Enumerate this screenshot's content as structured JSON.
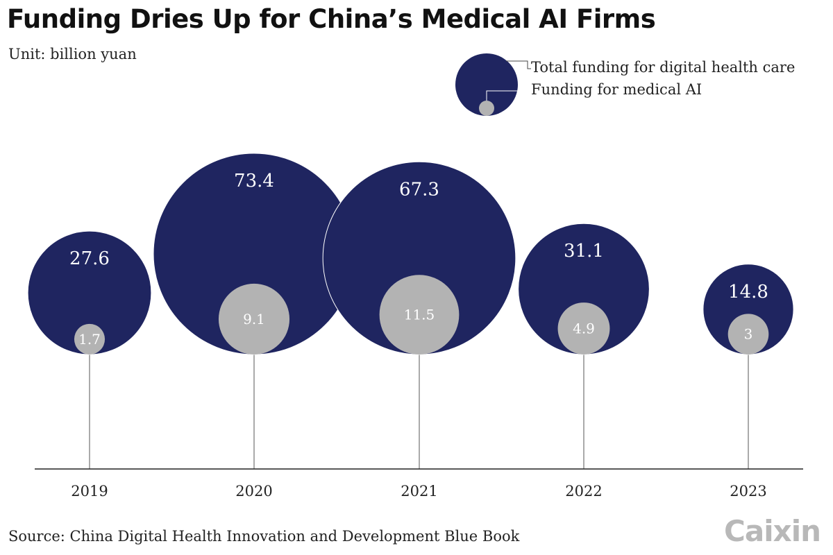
{
  "title": "Funding Dries Up for China’s Medical AI Firms",
  "subtitle": "Unit: billion yuan",
  "source": "Source: China Digital Health Innovation and Development Blue Book",
  "logo_text": "Caixin",
  "legend": {
    "total_label": "Total funding for digital health care",
    "ai_label": "Funding for medical AI"
  },
  "colors": {
    "total": "#1f2560",
    "ai": "#b3b3b3",
    "axis": "#222222"
  },
  "chart_data": {
    "type": "bubble",
    "categories": [
      "2019",
      "2020",
      "2021",
      "2022",
      "2023"
    ],
    "series": [
      {
        "name": "Total funding for digital health care",
        "values": [
          27.6,
          73.4,
          67.3,
          31.1,
          14.8
        ],
        "labels": [
          "27.6",
          "73.4",
          "67.3",
          "31.1",
          "14.8"
        ]
      },
      {
        "name": "Funding for medical AI",
        "values": [
          1.7,
          9.1,
          11.5,
          4.9,
          3
        ],
        "labels": [
          "1.7",
          "9.1",
          "11.5",
          "4.9",
          "3"
        ]
      }
    ]
  }
}
